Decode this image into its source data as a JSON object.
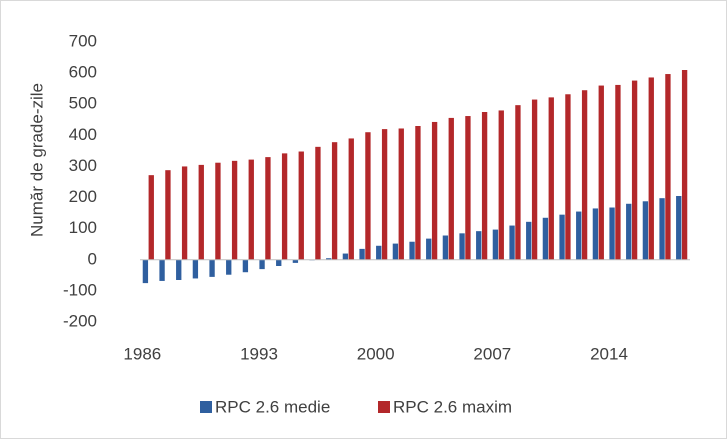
{
  "chart_data": {
    "type": "bar",
    "y_label": "Număr de grade-zile",
    "categories": [
      "1986",
      null,
      null,
      null,
      null,
      null,
      null,
      "1993",
      null,
      null,
      null,
      null,
      null,
      null,
      "2000",
      null,
      null,
      null,
      null,
      null,
      null,
      "2007",
      null,
      null,
      null,
      null,
      null,
      null,
      "2014",
      null,
      null,
      null,
      null
    ],
    "series": [
      {
        "name": "RPC 2.6 medie",
        "color": "#2f5f9f",
        "values": [
          -75,
          -68,
          -65,
          -60,
          -55,
          -48,
          -40,
          -30,
          -20,
          -10,
          0,
          5,
          20,
          35,
          45,
          52,
          58,
          68,
          78,
          85,
          92,
          97,
          110,
          122,
          135,
          145,
          155,
          165,
          168,
          180,
          188,
          198,
          205
        ]
      },
      {
        "name": "RPC 2.6 maxim",
        "color": "#b3282a",
        "values": [
          272,
          288,
          300,
          305,
          312,
          318,
          322,
          330,
          342,
          348,
          363,
          378,
          390,
          410,
          420,
          422,
          430,
          443,
          456,
          462,
          475,
          480,
          497,
          515,
          522,
          532,
          545,
          560,
          562,
          576,
          586,
          597,
          610
        ]
      }
    ],
    "ylim": [
      -200,
      700
    ],
    "yticks": [
      -200,
      -100,
      0,
      100,
      200,
      300,
      400,
      500,
      600,
      700
    ],
    "legend": "bottom"
  }
}
